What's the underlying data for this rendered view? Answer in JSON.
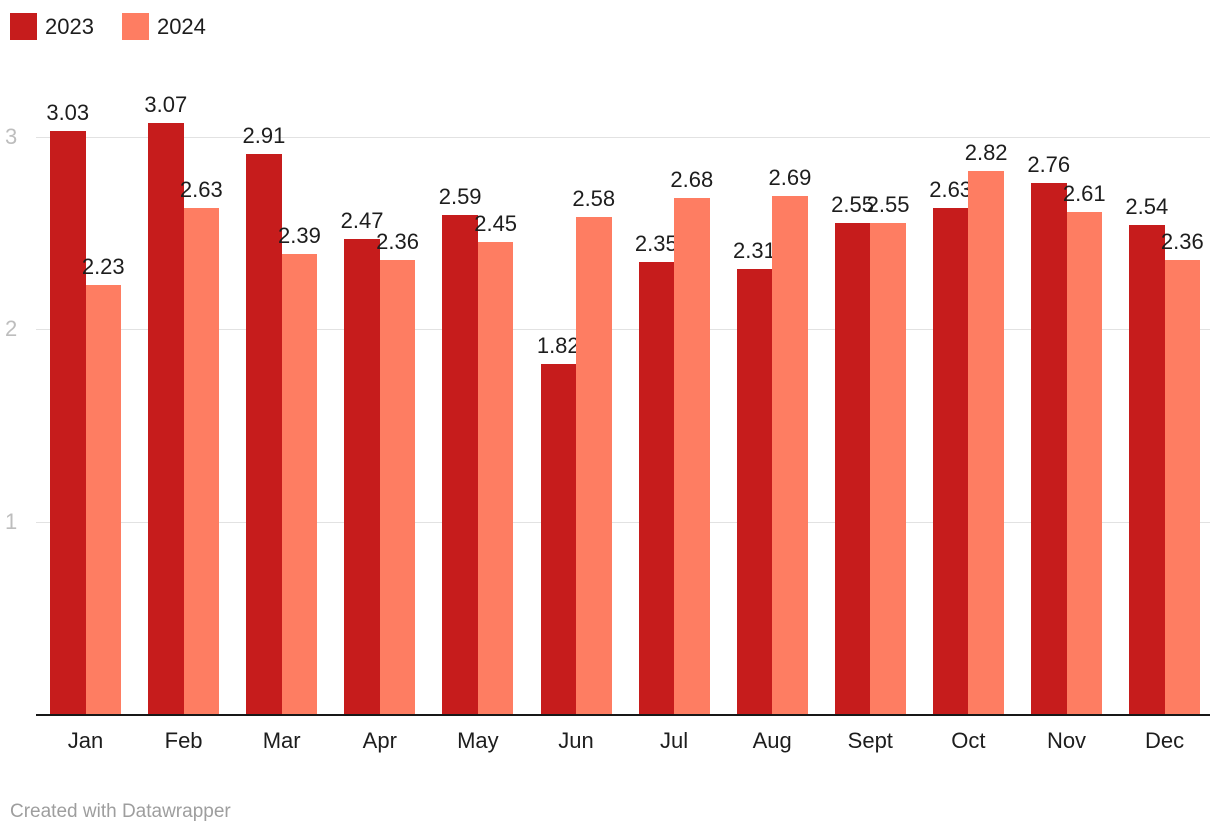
{
  "legend": {
    "items": [
      {
        "label": "2023",
        "color": "#c61c1c"
      },
      {
        "label": "2024",
        "color": "#fe7d62"
      }
    ]
  },
  "footer": {
    "text": "Created with Datawrapper"
  },
  "colors": {
    "series_2023": "#c61c1c",
    "series_2024": "#fe7d62",
    "gridline": "#e2e2e2",
    "axis_line": "#181818",
    "ytick_text": "#bdbdbd",
    "label_text": "#1d1d1d",
    "footer_text": "#9e9e9e"
  },
  "chart_data": {
    "type": "bar",
    "title": "",
    "xlabel": "",
    "ylabel": "",
    "categories": [
      "Jan",
      "Feb",
      "Mar",
      "Apr",
      "May",
      "Jun",
      "Jul",
      "Aug",
      "Sept",
      "Oct",
      "Nov",
      "Dec"
    ],
    "series": [
      {
        "name": "2023",
        "color": "#c61c1c",
        "values": [
          3.03,
          3.07,
          2.91,
          2.47,
          2.59,
          1.82,
          2.35,
          2.31,
          2.55,
          2.63,
          2.76,
          2.54
        ]
      },
      {
        "name": "2024",
        "color": "#fe7d62",
        "values": [
          2.23,
          2.63,
          2.39,
          2.36,
          2.45,
          2.58,
          2.68,
          2.69,
          2.55,
          2.82,
          2.61,
          2.36
        ]
      }
    ],
    "ylim": [
      0,
      3.2
    ],
    "yticks": [
      1,
      2,
      3
    ],
    "grid": true,
    "legend_position": "top-left",
    "value_labels": true,
    "credit": "Created with Datawrapper"
  }
}
